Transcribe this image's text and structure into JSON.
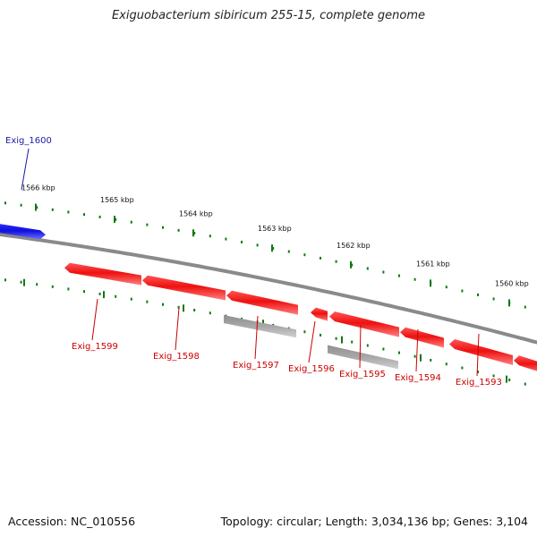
{
  "title": "Exiguobacterium sibiricum 255-15, complete genome",
  "footer": {
    "accession": "Accession: NC_010556",
    "summary": "Topology: circular; Length: 3,034,136 bp; Genes: 3,104"
  },
  "colors": {
    "forward_gene": "#1a1aee",
    "reverse_gene": "#ee1111",
    "reverse_gene_light": "#ff6a6a",
    "rna_feature": "#a9a9a9",
    "backbone": "#8a8a8a",
    "tick": "#137813",
    "forward_label": "#1a1aaa",
    "reverse_label": "#cc0000"
  },
  "scale_labels": [
    "1566 kbp",
    "1565 kbp",
    "1564 kbp",
    "1563 kbp",
    "1562 kbp",
    "1561 kbp",
    "1560 kbp"
  ],
  "genes": [
    {
      "name": "Exig_1600",
      "strand": "+"
    },
    {
      "name": "Exig_1599",
      "strand": "-"
    },
    {
      "name": "Exig_1598",
      "strand": "-"
    },
    {
      "name": "Exig_1597",
      "strand": "-"
    },
    {
      "name": "Exig_1596",
      "strand": "-"
    },
    {
      "name": "Exig_1595",
      "strand": "-"
    },
    {
      "name": "Exig_1594",
      "strand": "-"
    },
    {
      "name": "Exig_1593",
      "strand": "-"
    }
  ]
}
